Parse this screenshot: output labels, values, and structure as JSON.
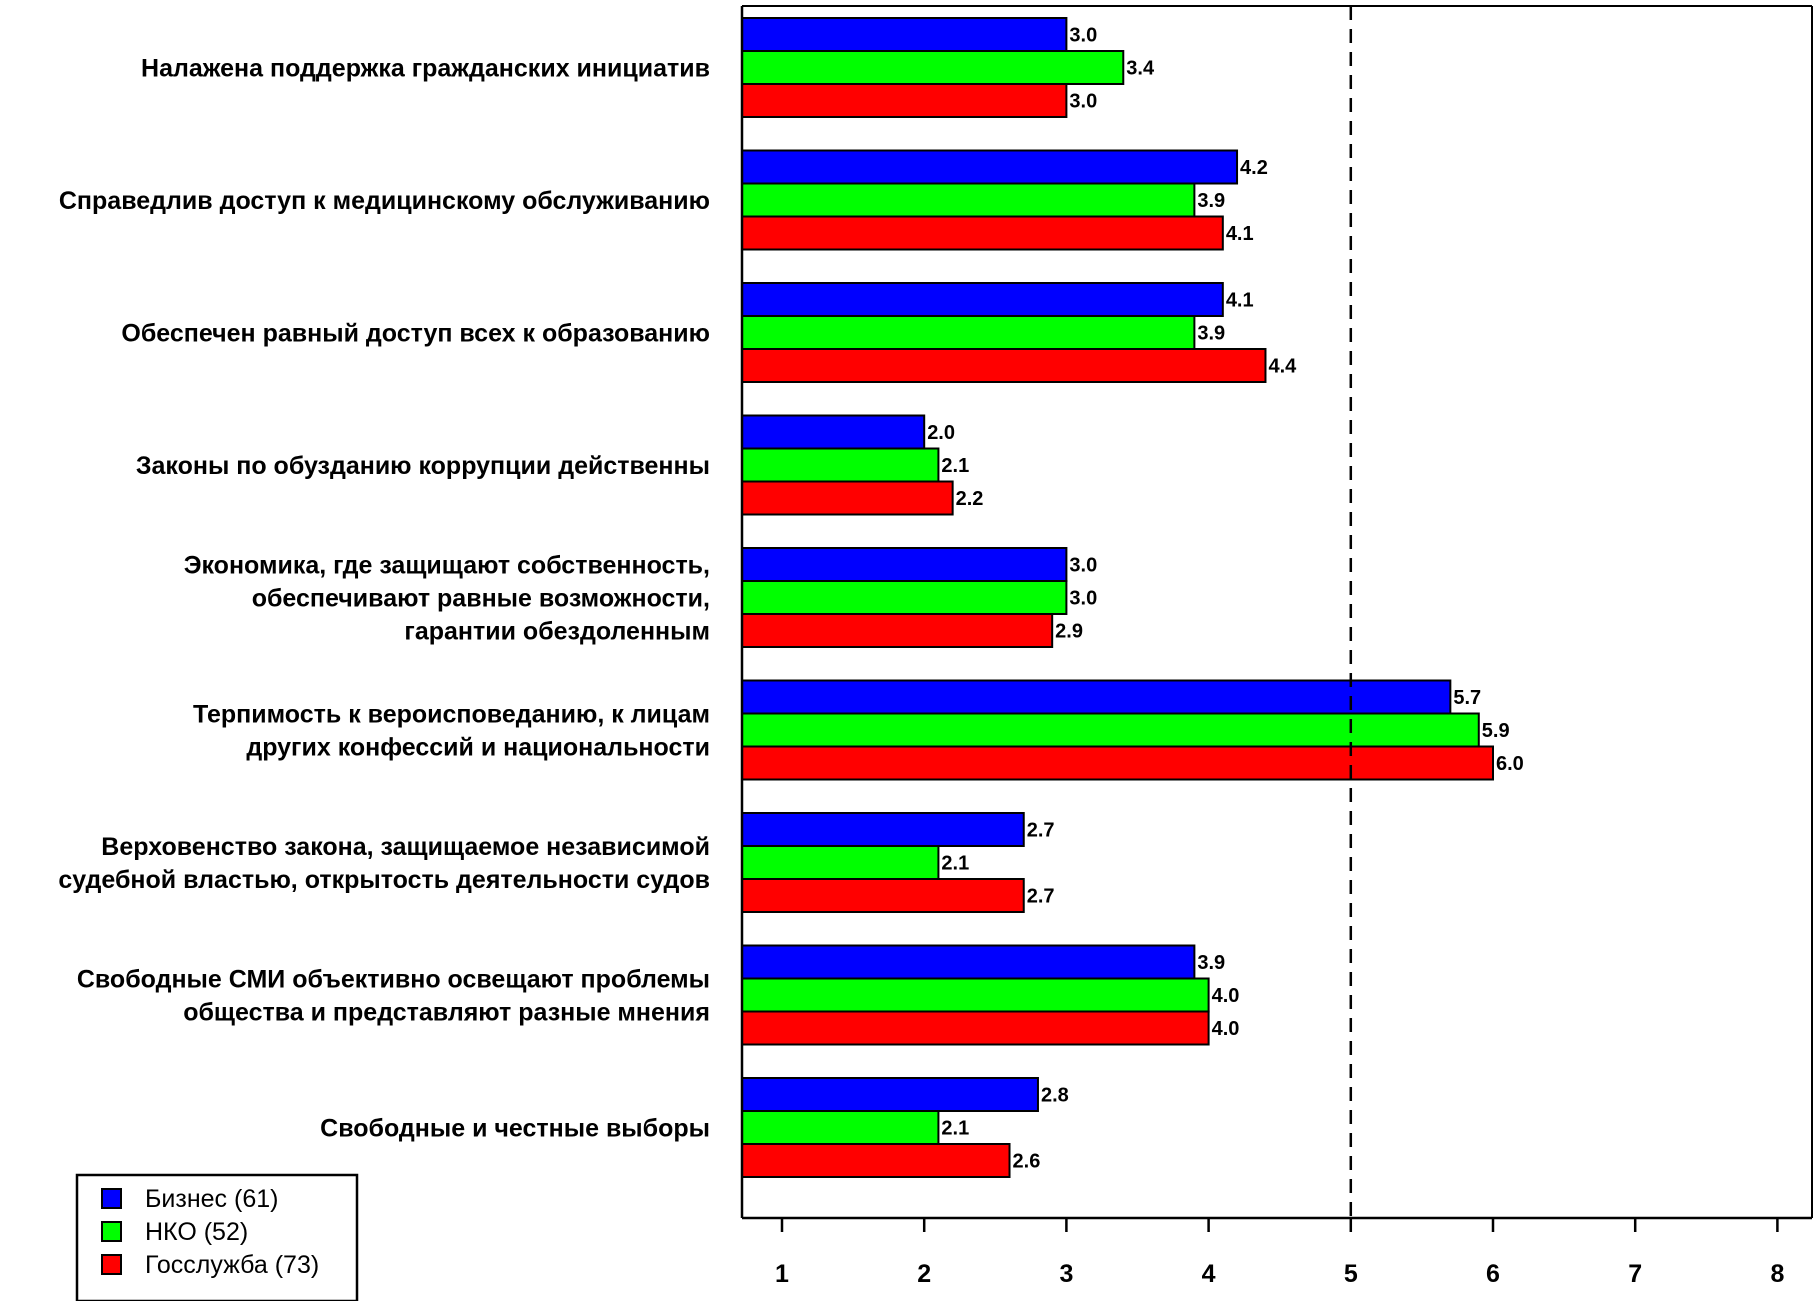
{
  "chart_data": {
    "type": "bar",
    "orientation": "horizontal",
    "title": "",
    "xlabel": "",
    "ylabel": "",
    "xlim": [
      0.72,
      8.05
    ],
    "x_ticks": [
      1,
      2,
      3,
      4,
      5,
      6,
      7,
      8
    ],
    "reference_line": 5,
    "grid": false,
    "legend_position": "bottom-left",
    "categories": [
      [
        "Налажена поддержка гражданских инициатив"
      ],
      [
        "Справедлив доступ к медицинскому обслуживанию"
      ],
      [
        "Обеспечен равный доступ всех к образованию"
      ],
      [
        "Законы по обузданию коррупции действенны"
      ],
      [
        "Экономика, где защищают собственность,",
        "обеспечивают равные возможности,",
        "гарантии обездоленным"
      ],
      [
        "Терпимость к вероисповеданию, к лицам",
        "других конфессий и национальности"
      ],
      [
        "Верховенство закона, защищаемое независимой",
        "судебной властью, открытость деятельности судов"
      ],
      [
        "Свободные СМИ объективно освещают проблемы",
        "общества и представляют разные мнения"
      ],
      [
        "Свободные и честные выборы"
      ]
    ],
    "series": [
      {
        "name": "Бизнес (61)",
        "color": "#0000ff",
        "values": [
          3.0,
          4.2,
          4.1,
          2.0,
          3.0,
          5.7,
          2.7,
          3.9,
          2.8
        ],
        "labels": [
          "3.0",
          "4.2",
          "4.1",
          "2.0",
          "3.0",
          "5.7",
          "2.7",
          "3.9",
          "2.8"
        ]
      },
      {
        "name": "НКО (52)",
        "color": "#00ff00",
        "values": [
          3.4,
          3.9,
          3.9,
          2.1,
          3.0,
          5.9,
          2.1,
          4.0,
          2.1
        ],
        "labels": [
          "3.4",
          "3.9",
          "3.9",
          "2.1",
          "3.0",
          "5.9",
          "2.1",
          "4.0",
          "2.1"
        ]
      },
      {
        "name": "Госслужба (73)",
        "color": "#ff0000",
        "values": [
          3.0,
          4.1,
          4.4,
          2.2,
          2.9,
          6.0,
          2.7,
          4.0,
          2.6
        ],
        "labels": [
          "3.0",
          "4.1",
          "4.4",
          "2.2",
          "2.9",
          "6.0",
          "2.7",
          "4.0",
          "2.6"
        ]
      }
    ]
  }
}
